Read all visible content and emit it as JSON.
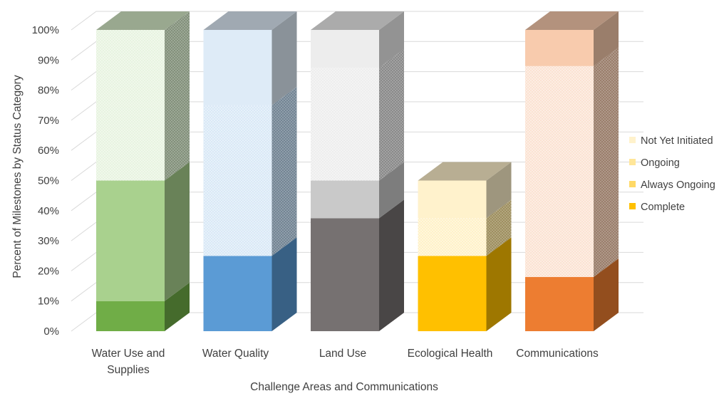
{
  "chart_data": {
    "type": "bar",
    "stacked": true,
    "percent_stacked": true,
    "three_d": true,
    "title": "",
    "xlabel": "Challenge Areas and Communications",
    "ylabel": "Percent of Milestones by Status Category",
    "ylim": [
      0,
      100
    ],
    "y_ticks": [
      "0%",
      "10%",
      "20%",
      "30%",
      "40%",
      "50%",
      "60%",
      "70%",
      "80%",
      "90%",
      "100%"
    ],
    "grid": true,
    "legend_position": "right",
    "categories": [
      {
        "label_lines": [
          "Water Use and",
          "Supplies"
        ],
        "colors": [
          "#70ad47",
          "#a9d18e",
          "#d4eac6",
          "#d4eac6"
        ]
      },
      {
        "label_lines": [
          "Water Quality"
        ],
        "colors": [
          "#5b9bd5",
          "#9dc3e6",
          "#b9d6ef",
          "#deebf7"
        ]
      },
      {
        "label_lines": [
          "Land Use"
        ],
        "colors": [
          "#767171",
          "#c9c9c9",
          "#dedede",
          "#ededed"
        ]
      },
      {
        "label_lines": [
          "Ecological Health"
        ],
        "colors": [
          "#ffc000",
          "#ffd966",
          "#ffe699",
          "#fff2cc"
        ]
      },
      {
        "label_lines": [
          "Communications"
        ],
        "colors": [
          "#ed7d31",
          "#f4b183",
          "#f8cbad",
          "#f8cbad"
        ]
      }
    ],
    "series": [
      {
        "name": "Complete",
        "values": [
          10,
          25,
          37.5,
          25,
          18
        ],
        "pattern": false
      },
      {
        "name": "Always Ongoing",
        "values": [
          40,
          0,
          12.5,
          0,
          0
        ],
        "pattern": false
      },
      {
        "name": "Ongoing",
        "values": [
          50,
          50,
          37.5,
          12.5,
          70
        ],
        "pattern": true
      },
      {
        "name": "Not Yet Initiated",
        "values": [
          0,
          25,
          12.5,
          12.5,
          12
        ],
        "pattern": false
      }
    ],
    "legend": [
      {
        "name": "Not Yet Initiated",
        "color": "#fff2cc"
      },
      {
        "name": "Ongoing",
        "color": "#ffe699"
      },
      {
        "name": "Always Ongoing",
        "color": "#ffd966"
      },
      {
        "name": "Complete",
        "color": "#ffc000"
      }
    ]
  }
}
